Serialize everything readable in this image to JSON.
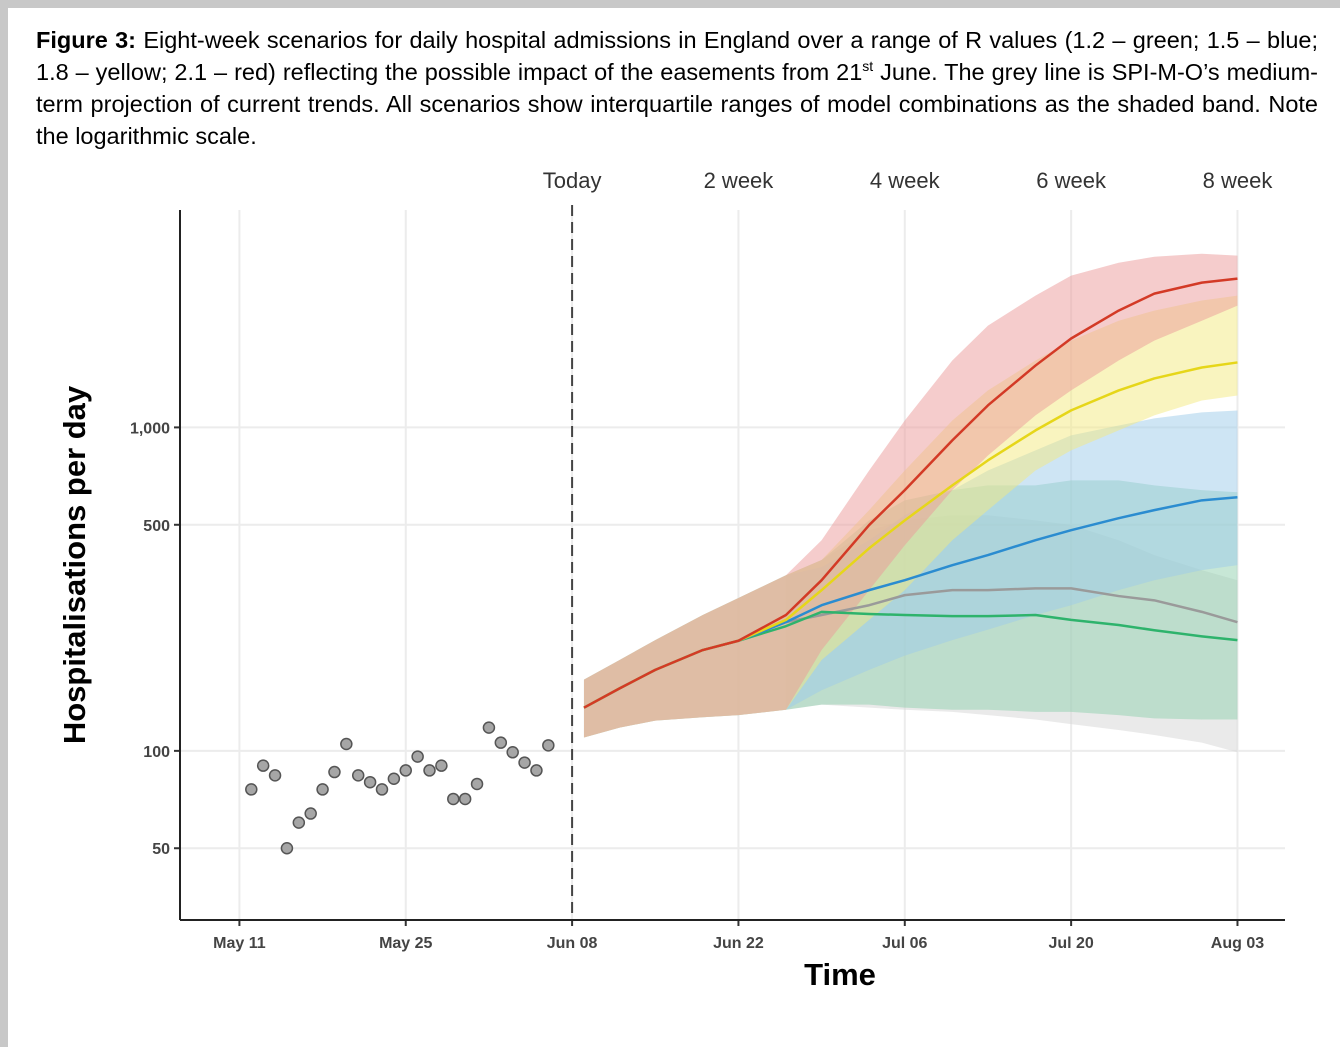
{
  "caption": {
    "label": "Figure 3:",
    "text": " Eight-week scenarios for daily hospital admissions in England over a range of R values (1.2 – green; 1.5 – blue; 1.8 – yellow; 2.1 – red) reflecting the possible impact of the easements from 21",
    "sup": "st",
    "text_end": " June. The grey line is SPI-M-O’s medium-term projection of current trends. All scenarios show interquartile ranges of model combinations as the shaded band. Note the logarithmic scale."
  },
  "chart_data": {
    "type": "line",
    "ylabel": "Hospitalisations per day",
    "xlabel": "Time",
    "log_scale": true,
    "grid": true,
    "xlim": [
      "May 06",
      "Aug 07"
    ],
    "xticks": [
      "May 11",
      "May 25",
      "Jun 08",
      "Jun 22",
      "Jul 06",
      "Jul 20",
      "Aug 03"
    ],
    "ylim": [
      30,
      4700
    ],
    "yticks": [
      50,
      100,
      500,
      {
        "value": 1000,
        "label": "1,000"
      }
    ],
    "reference_line": {
      "x": "Jun 08",
      "style": "dashed"
    },
    "period_labels": {
      "x": [
        "Jun 08",
        "Jun 22",
        "Jul 06",
        "Jul 20",
        "Aug 03"
      ],
      "labels": [
        "Today",
        "2 week",
        "4 week",
        "6 week",
        "8 week"
      ]
    },
    "observed": {
      "color": "#a6a6a6",
      "x": [
        "May 12",
        "May 13",
        "May 14",
        "May 15",
        "May 16",
        "May 17",
        "May 18",
        "May 19",
        "May 20",
        "May 21",
        "May 22",
        "May 23",
        "May 24",
        "May 25",
        "May 26",
        "May 27",
        "May 28",
        "May 29",
        "May 30",
        "May 31",
        "Jun 01",
        "Jun 02",
        "Jun 03",
        "Jun 04",
        "Jun 05",
        "Jun 06"
      ],
      "values": [
        76,
        90,
        84,
        50,
        60,
        64,
        76,
        86,
        105,
        84,
        80,
        76,
        82,
        87,
        96,
        87,
        90,
        71,
        71,
        79,
        118,
        106,
        99,
        92,
        87,
        104
      ]
    },
    "x": [
      "Jun 09",
      "Jun 12",
      "Jun 15",
      "Jun 19",
      "Jun 22",
      "Jun 26",
      "Jun 29",
      "Jul 03",
      "Jul 06",
      "Jul 10",
      "Jul 13",
      "Jul 17",
      "Jul 20",
      "Jul 24",
      "Jul 27",
      "Jul 31",
      "Aug 03"
    ],
    "series": [
      {
        "color": "#9a9a9a",
        "band_color": "#d6d6d6",
        "values": [
          null,
          null,
          null,
          null,
          null,
          250,
          263,
          282,
          303,
          314,
          314,
          318,
          318,
          301,
          292,
          269,
          250
        ],
        "lower": [
          null,
          null,
          null,
          null,
          null,
          134,
          139,
          136,
          134,
          132,
          129,
          125,
          121,
          116,
          112,
          106,
          99
        ],
        "upper": [
          null,
          null,
          null,
          null,
          null,
          349,
          389,
          481,
          516,
          535,
          535,
          516,
          499,
          448,
          403,
          362,
          337
        ]
      },
      {
        "color": "#2eb36c",
        "band_color": "#8fcfae",
        "values": [
          136,
          156,
          178,
          205,
          219,
          243,
          269,
          265,
          263,
          261,
          261,
          263,
          254,
          245,
          236,
          226,
          220
        ],
        "lower": [
          110,
          118,
          124,
          127,
          129,
          134,
          139,
          139,
          136,
          134,
          134,
          132,
          132,
          129,
          126,
          125,
          125
        ],
        "upper": [
          166,
          191,
          220,
          263,
          297,
          349,
          389,
          516,
          595,
          640,
          662,
          662,
          686,
          686,
          662,
          640,
          630
        ]
      },
      {
        "color": "#2b8cd0",
        "band_color": "#9ecbea",
        "values": [
          136,
          156,
          178,
          205,
          219,
          250,
          282,
          314,
          337,
          375,
          403,
          448,
          481,
          524,
          555,
          595,
          608
        ],
        "lower": [
          110,
          118,
          124,
          127,
          129,
          134,
          154,
          178,
          197,
          220,
          237,
          263,
          282,
          314,
          337,
          362,
          375
        ],
        "upper": [
          166,
          191,
          220,
          263,
          297,
          349,
          370,
          448,
          535,
          640,
          736,
          849,
          945,
          1014,
          1066,
          1113,
          1128
        ]
      },
      {
        "color": "#e6d619",
        "band_color": "#f3ea7f",
        "values": [
          136,
          156,
          178,
          205,
          219,
          254,
          314,
          423,
          516,
          662,
          791,
          979,
          1129,
          1301,
          1417,
          1532,
          1588
        ],
        "lower": [
          110,
          118,
          124,
          127,
          129,
          134,
          191,
          254,
          314,
          448,
          555,
          736,
          849,
          979,
          1089,
          1211,
          1255
        ],
        "upper": [
          166,
          191,
          220,
          263,
          297,
          349,
          389,
          555,
          736,
          1050,
          1301,
          1610,
          1855,
          2137,
          2297,
          2468,
          2556
        ]
      },
      {
        "color": "#d33a26",
        "band_color": "#eb9a9a",
        "values": [
          136,
          156,
          178,
          205,
          219,
          263,
          337,
          499,
          640,
          912,
          1170,
          1553,
          1883,
          2297,
          2592,
          2803,
          2884
        ],
        "lower": [
          110,
          118,
          124,
          127,
          129,
          134,
          205,
          314,
          432,
          640,
          819,
          1089,
          1301,
          1610,
          1855,
          2137,
          2379
        ],
        "upper": [
          166,
          191,
          220,
          263,
          297,
          349,
          448,
          736,
          1050,
          1610,
          2063,
          2556,
          2945,
          3230,
          3370,
          3443,
          3396
        ]
      }
    ]
  }
}
